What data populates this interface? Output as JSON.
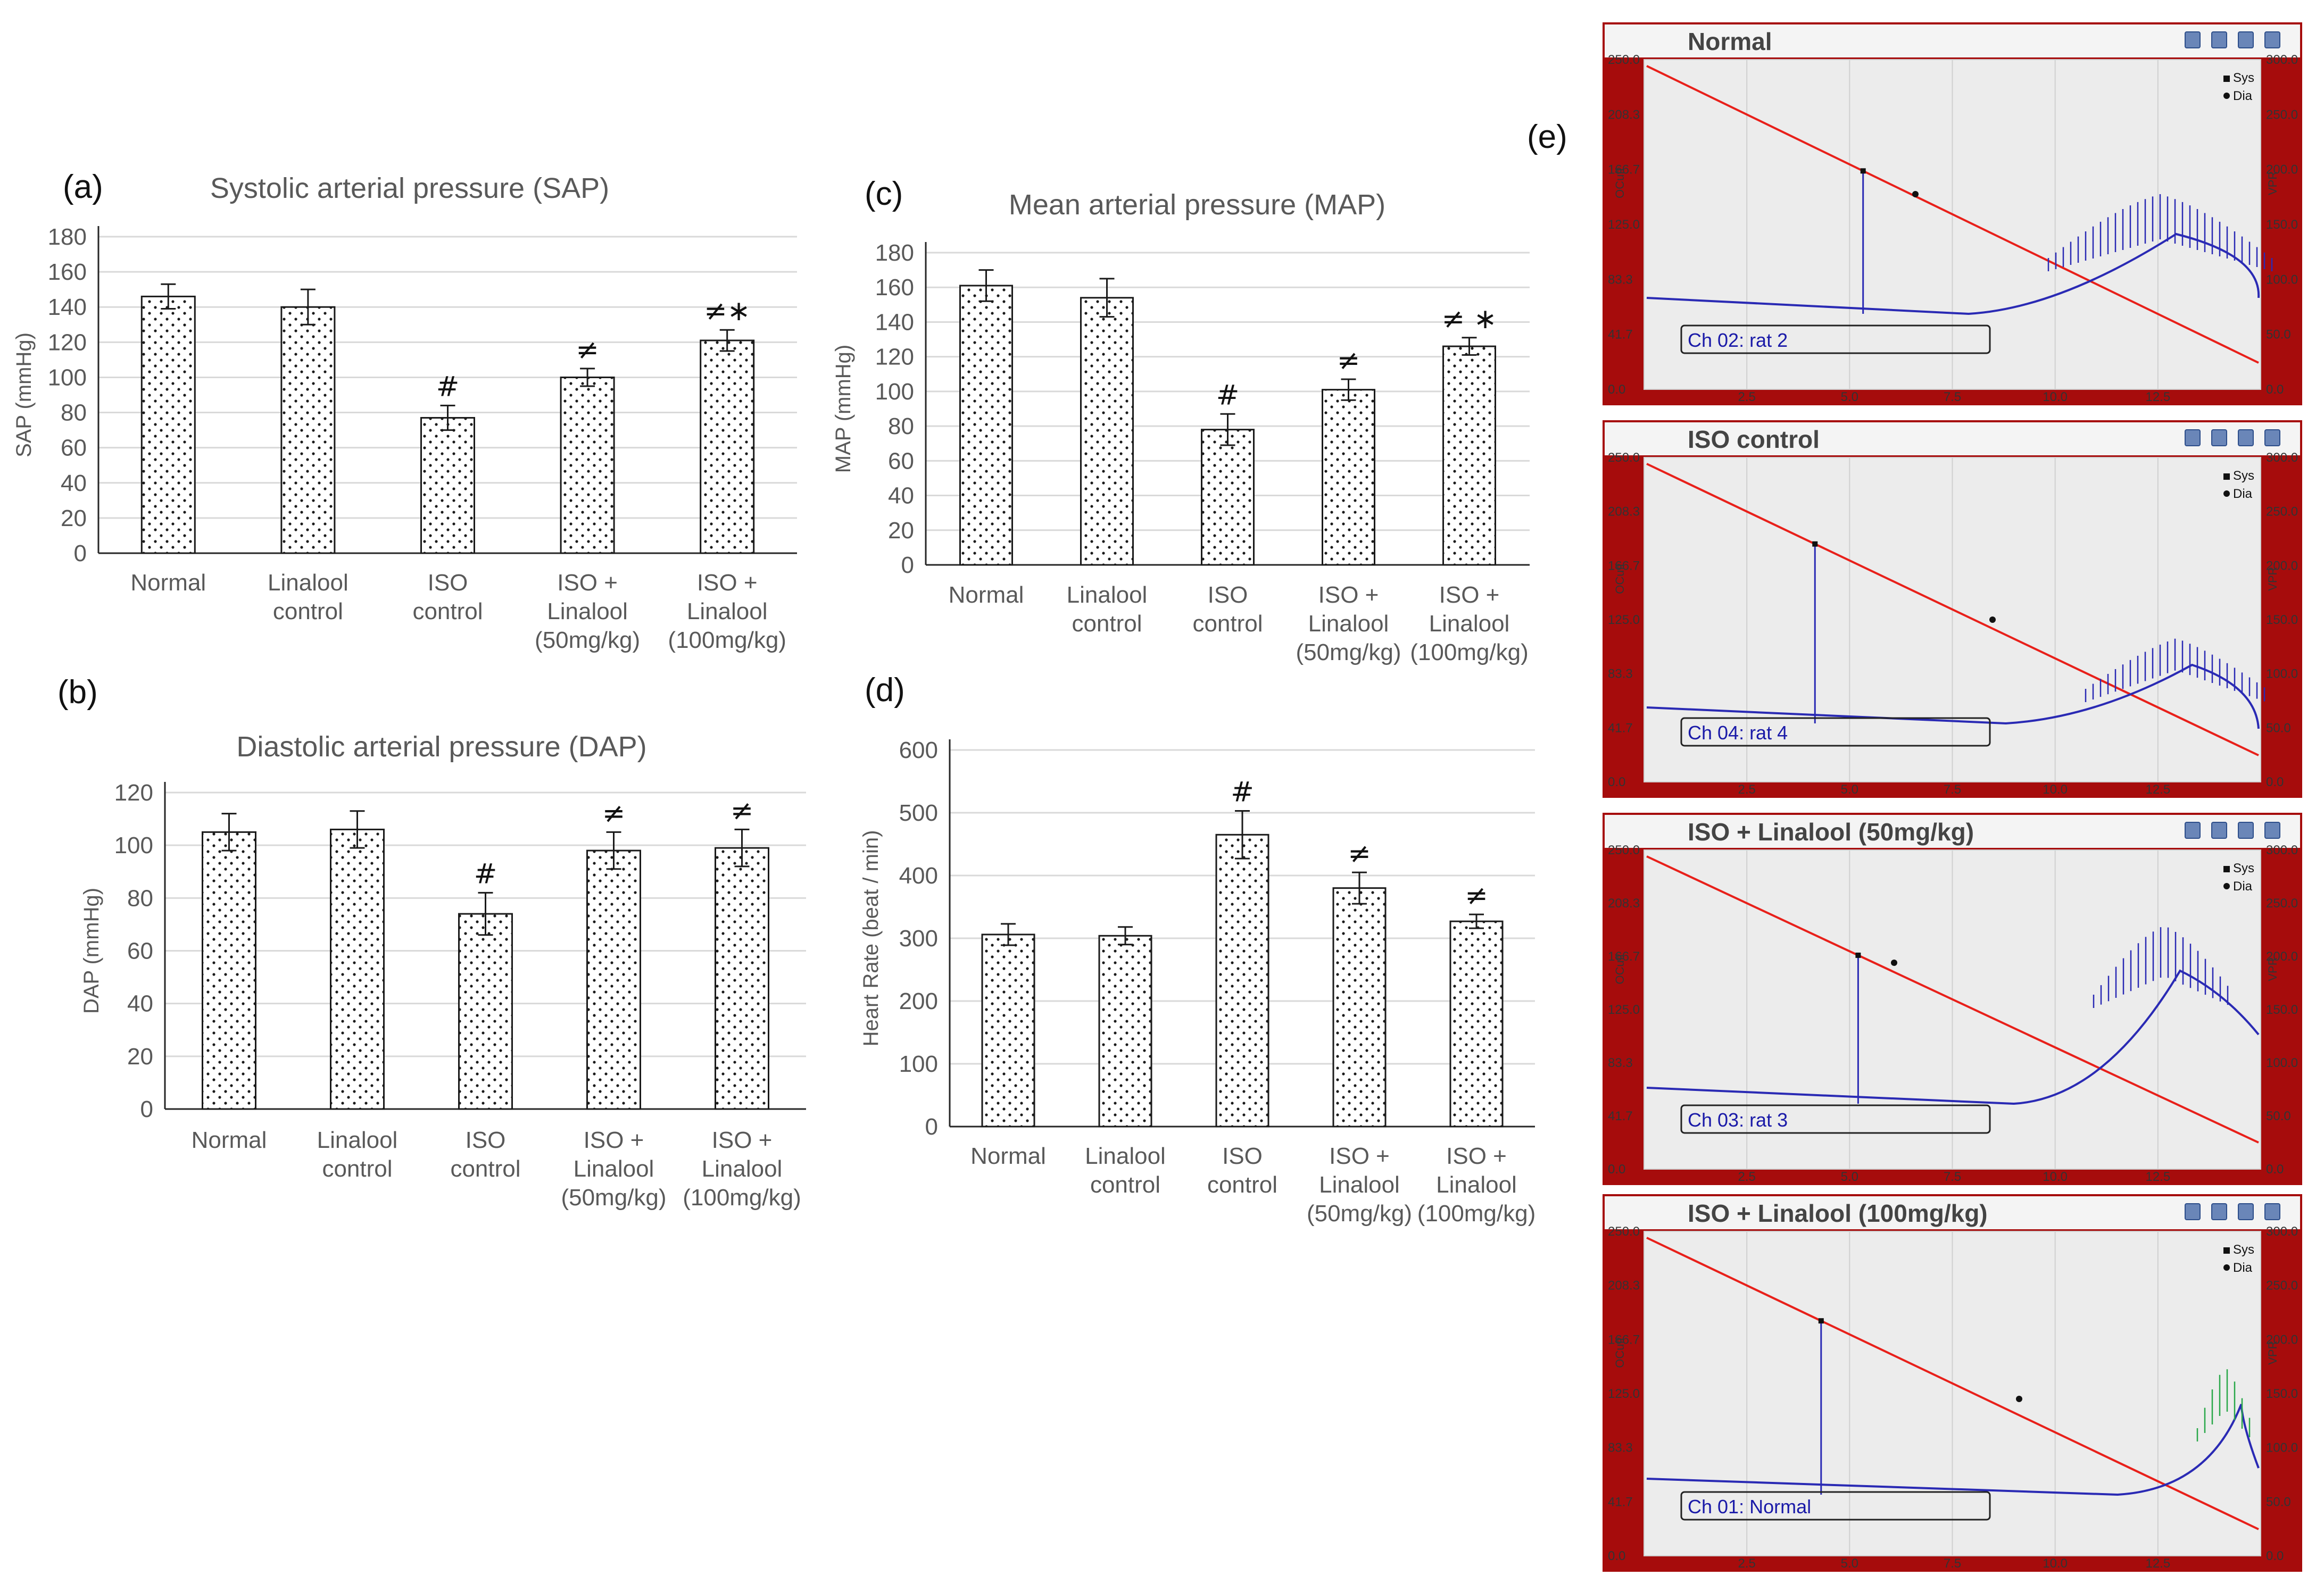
{
  "figure_label_e": "(e)",
  "chart_data": [
    {
      "id": "sap",
      "panel": "(a)",
      "type": "bar",
      "title": "Systolic arterial pressure (SAP)",
      "ylabel": "SAP (mmHg)",
      "categories": [
        [
          "Normal"
        ],
        [
          "Linalool",
          "control"
        ],
        [
          "ISO",
          "control"
        ],
        [
          "ISO +",
          "Linalool",
          "(50mg/kg)"
        ],
        [
          "ISO +",
          "Linalool",
          "(100mg/kg)"
        ]
      ],
      "values": [
        146,
        140,
        77,
        100,
        121
      ],
      "errors": [
        7,
        10,
        7,
        5,
        6
      ],
      "markers": [
        "",
        "",
        "#",
        "≠",
        "≠∗"
      ],
      "ylim": [
        0,
        180
      ],
      "ystep": 20
    },
    {
      "id": "dap",
      "panel": "(b)",
      "type": "bar",
      "title": "Diastolic arterial pressure (DAP)",
      "ylabel": "DAP (mmHg)",
      "categories": [
        [
          "Normal"
        ],
        [
          "Linalool",
          "control"
        ],
        [
          "ISO",
          "control"
        ],
        [
          "ISO +",
          "Linalool",
          "(50mg/kg)"
        ],
        [
          "ISO +",
          "Linalool",
          "(100mg/kg)"
        ]
      ],
      "values": [
        105,
        106,
        74,
        98,
        99
      ],
      "errors": [
        7,
        7,
        8,
        7,
        7
      ],
      "markers": [
        "",
        "",
        "#",
        "≠",
        "≠"
      ],
      "ylim": [
        0,
        120
      ],
      "ystep": 20
    },
    {
      "id": "map",
      "panel": "(c)",
      "type": "bar",
      "title": "Mean arterial pressure (MAP)",
      "ylabel": "MAP (mmHg)",
      "categories": [
        [
          "Normal"
        ],
        [
          "Linalool",
          "control"
        ],
        [
          "ISO",
          "control"
        ],
        [
          "ISO +",
          "Linalool",
          "(50mg/kg)"
        ],
        [
          "ISO +",
          "Linalool",
          "(100mg/kg)"
        ]
      ],
      "values": [
        161,
        154,
        78,
        101,
        126
      ],
      "errors": [
        9,
        11,
        9,
        6,
        5
      ],
      "markers": [
        "",
        "",
        "#",
        "≠",
        "≠ ∗"
      ],
      "ylim": [
        0,
        180
      ],
      "ystep": 20
    },
    {
      "id": "hr",
      "panel": "(d)",
      "type": "bar",
      "title": "",
      "ylabel": "Heart Rate (beat / min)",
      "categories": [
        [
          "Normal"
        ],
        [
          "Linalool",
          "control"
        ],
        [
          "ISO",
          "control"
        ],
        [
          "ISO +",
          "Linalool",
          "(50mg/kg)"
        ],
        [
          "ISO +",
          "Linalool",
          "(100mg/kg)"
        ]
      ],
      "values": [
        306,
        304,
        465,
        380,
        327
      ],
      "errors": [
        17,
        14,
        38,
        25,
        11
      ],
      "markers": [
        "",
        "",
        "#",
        "≠",
        "≠"
      ],
      "ylim": [
        0,
        600
      ],
      "ystep": 100
    }
  ],
  "recordings": [
    {
      "title": "Normal",
      "channel": "Ch 02: rat 2"
    },
    {
      "title": "ISO control",
      "channel": "Ch 04: rat 4"
    },
    {
      "title": "ISO + Linalool  (50mg/kg)",
      "channel": "Ch 03: rat 3"
    },
    {
      "title": "ISO + Linalool   (100mg/kg)",
      "channel": "Ch 01: Normal"
    }
  ],
  "recording_axes": {
    "left_ticks": [
      "250.0",
      "208.3",
      "166.7",
      "125.0",
      "83.3",
      "41.7",
      "0.0"
    ],
    "right_ticks": [
      "300.0",
      "250.0",
      "200.0",
      "150.0",
      "100.0",
      "50.0",
      "0.0"
    ],
    "x_ticks": [
      "2.5",
      "5.0",
      "7.5",
      "10.0",
      "12.5"
    ],
    "left_label": "OCuff",
    "right_label": "VPR",
    "legend_sys": "Sys",
    "legend_dia": "Dia"
  },
  "colors": {
    "cuff_line": "#e8201a",
    "trace": "#2a2ab4",
    "plot_bg": "#ececec",
    "frame": "#a60c0c"
  }
}
